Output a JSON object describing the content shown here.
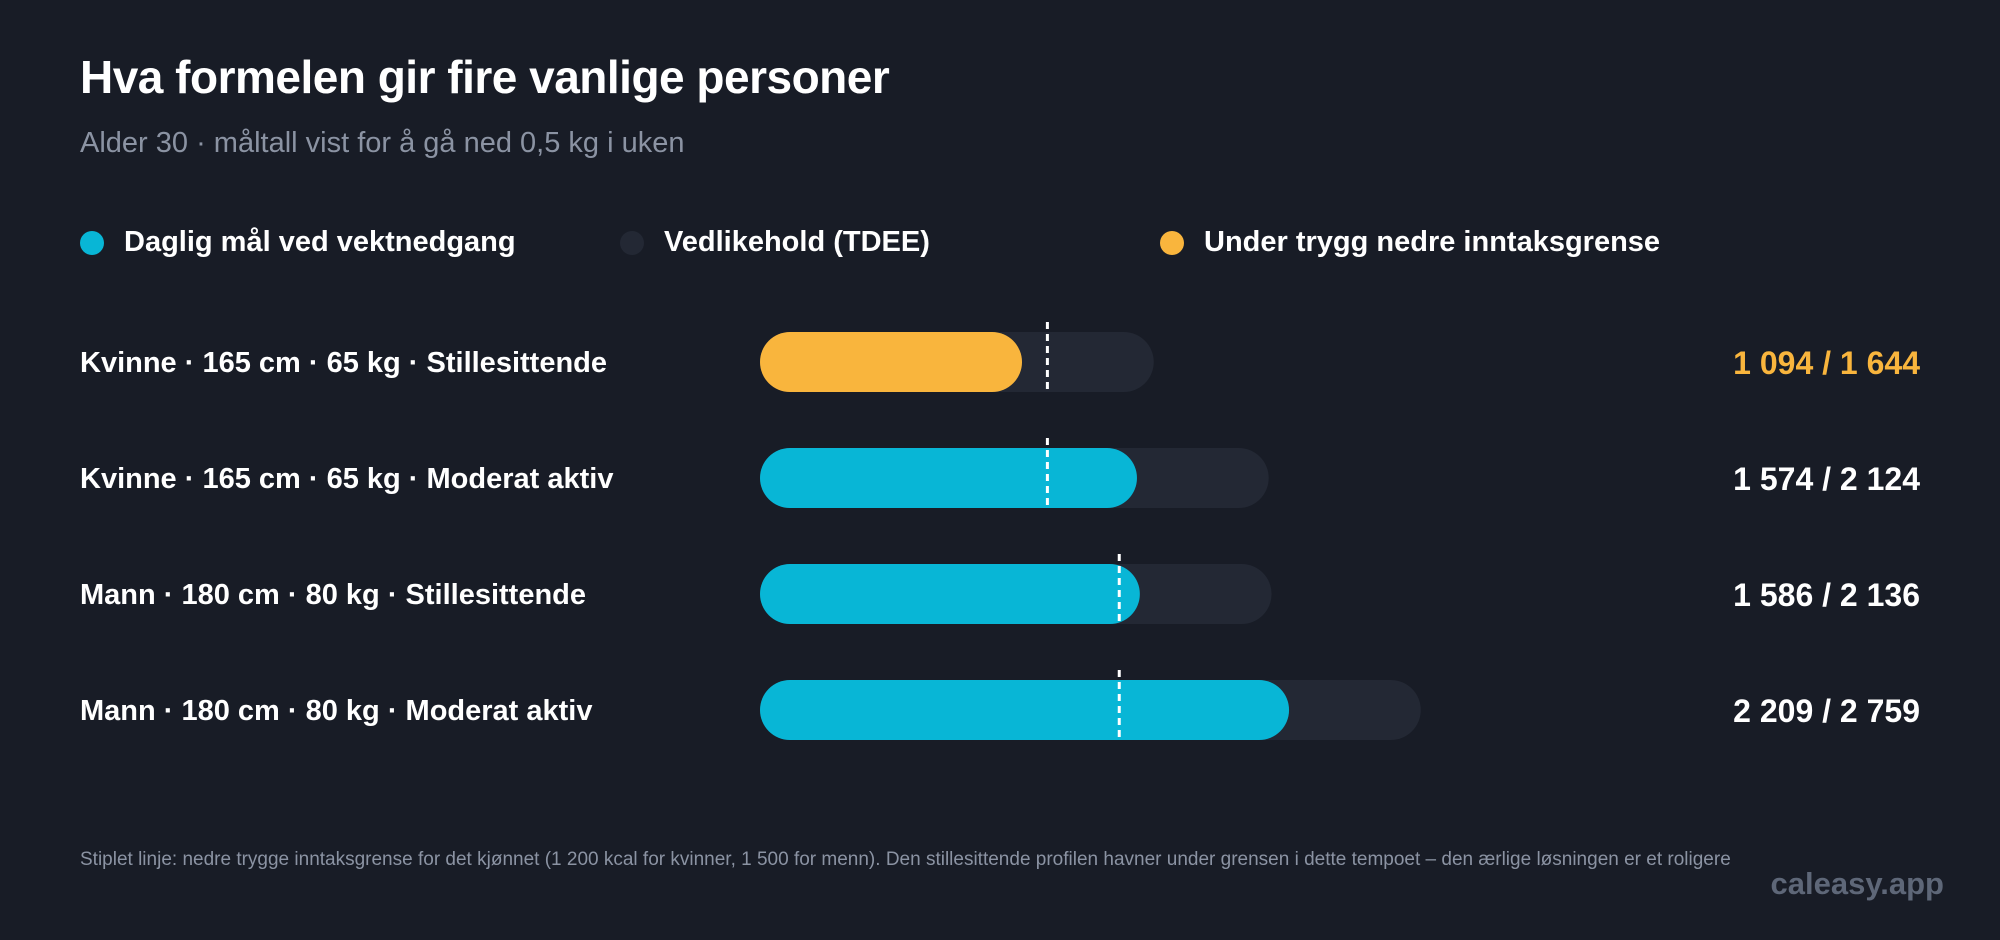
{
  "title": "Hva formelen gir fire vanlige personer",
  "subtitle": "Alder 30 · måltall vist for å gå ned 0,5 kg i uken",
  "legend": [
    {
      "label": "Daglig mål ved vektnedgang",
      "color": "#08b6d6"
    },
    {
      "label": "Vedlikehold (TDEE)",
      "color": "#232834"
    },
    {
      "label": "Under trygg nedre inntaksgrense",
      "color": "#f9b53d"
    }
  ],
  "chart_data": {
    "type": "bar",
    "orientation": "horizontal",
    "categories": [
      "Kvinne · 165 cm · 65 kg · Stillesittende",
      "Kvinne · 165 cm · 65 kg · Moderat aktiv",
      "Mann · 180 cm · 80 kg · Stillesittende",
      "Mann · 180 cm · 80 kg · Moderat aktiv"
    ],
    "series": [
      {
        "name": "Daglig mål ved vektnedgang",
        "values": [
          1094,
          1574,
          1586,
          2209
        ]
      },
      {
        "name": "Vedlikehold (TDEE)",
        "values": [
          1644,
          2124,
          2136,
          2759
        ]
      }
    ],
    "safe_minimum": [
      1200,
      1200,
      1500,
      1500
    ],
    "below_minimum": [
      true,
      false,
      false,
      false
    ],
    "value_labels": [
      "1 094 / 1 644",
      "1 574 / 2 124",
      "1 586 / 2 136",
      "2 209 / 2 759"
    ],
    "colors": {
      "target": "#08b6d6",
      "maintenance": "#232834",
      "below_minimum": "#f9b53d",
      "threshold_line": "#ffffff",
      "label_text": "#ffffff"
    }
  },
  "footnote": "Stiplet linje: nedre trygge inntaksgrense for det kjønnet (1 200 kcal for kvinner, 1 500 for menn). Den stillesittende profilen havner under grensen i dette tempoet – den ærlige løsningen er et roligere",
  "brand": "caleasy.app"
}
